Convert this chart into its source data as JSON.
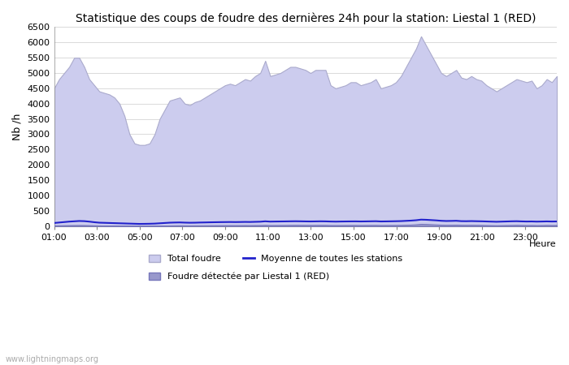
{
  "title": "Statistique des coups de foudre des dernières 24h pour la station: Liestal 1 (RED)",
  "ylabel": "Nb /h",
  "xlabel_right": "Heure",
  "watermark": "www.lightningmaps.org",
  "ylim": [
    0,
    6500
  ],
  "yticks": [
    0,
    500,
    1000,
    1500,
    2000,
    2500,
    3000,
    3500,
    4000,
    4500,
    5000,
    5500,
    6000,
    6500
  ],
  "xtick_labels": [
    "01:00",
    "03:00",
    "05:00",
    "07:00",
    "09:00",
    "11:00",
    "13:00",
    "15:00",
    "17:00",
    "19:00",
    "21:00",
    "23:00"
  ],
  "xtick_pos": [
    1,
    3,
    5,
    7,
    9,
    11,
    13,
    15,
    17,
    19,
    21,
    23
  ],
  "bg_color": "#ffffff",
  "grid_color": "#cccccc",
  "fill_color_total": "#ccccee",
  "fill_edge_total": "#aaaacc",
  "fill_color_liestal": "#9999cc",
  "fill_edge_liestal": "#7777bb",
  "line_color_mean": "#2222cc",
  "legend_labels": [
    "Total foudre",
    "Moyenne de toutes les stations",
    "Foudre détectée par Liestal 1 (RED)"
  ],
  "total_foudre": [
    4500,
    4800,
    5000,
    5200,
    5500,
    5500,
    5200,
    4800,
    4600,
    4400,
    4350,
    4300,
    4200,
    4000,
    3600,
    3000,
    2700,
    2650,
    2650,
    2700,
    3000,
    3500,
    3800,
    4100,
    4150,
    4200,
    4000,
    3950,
    4050,
    4100,
    4200,
    4300,
    4400,
    4500,
    4600,
    4650,
    4600,
    4700,
    4800,
    4750,
    4900,
    5000,
    5400,
    4900,
    4950,
    5000,
    5100,
    5200,
    5200,
    5150,
    5100,
    5000,
    5100,
    5100,
    5100,
    4600,
    4500,
    4550,
    4600,
    4700,
    4700,
    4600,
    4650,
    4700,
    4800,
    4500,
    4550,
    4600,
    4700,
    4900,
    5200,
    5500,
    5800,
    6200,
    5900,
    5600,
    5300,
    5000,
    4900,
    5000,
    5100,
    4850,
    4800,
    4900,
    4800,
    4750,
    4600,
    4500,
    4400,
    4500,
    4600,
    4700,
    4800,
    4750,
    4700,
    4750,
    4500,
    4600,
    4800,
    4700,
    4900
  ],
  "moyenne": [
    100,
    115,
    130,
    145,
    155,
    165,
    160,
    145,
    125,
    110,
    105,
    100,
    95,
    90,
    85,
    80,
    75,
    70,
    72,
    75,
    80,
    90,
    100,
    110,
    115,
    118,
    112,
    108,
    110,
    115,
    118,
    122,
    125,
    128,
    130,
    132,
    130,
    132,
    135,
    133,
    138,
    142,
    155,
    145,
    148,
    150,
    152,
    155,
    157,
    155,
    152,
    150,
    152,
    155,
    153,
    148,
    145,
    148,
    150,
    152,
    153,
    150,
    152,
    155,
    158,
    150,
    152,
    155,
    158,
    162,
    170,
    178,
    190,
    210,
    205,
    195,
    185,
    172,
    165,
    168,
    172,
    160,
    158,
    162,
    158,
    155,
    150,
    145,
    140,
    145,
    150,
    155,
    158,
    152,
    148,
    150,
    145,
    148,
    152,
    148,
    150
  ],
  "liestal": [
    20,
    22,
    25,
    28,
    30,
    32,
    30,
    26,
    22,
    18,
    16,
    15,
    13,
    12,
    10,
    8,
    7,
    6,
    6,
    7,
    9,
    12,
    15,
    18,
    20,
    22,
    20,
    19,
    20,
    21,
    22,
    24,
    25,
    26,
    27,
    28,
    27,
    28,
    29,
    28,
    30,
    31,
    35,
    30,
    31,
    32,
    33,
    35,
    36,
    35,
    34,
    33,
    34,
    35,
    34,
    30,
    29,
    30,
    31,
    32,
    32,
    31,
    32,
    33,
    34,
    30,
    31,
    32,
    33,
    35,
    40,
    45,
    55,
    70,
    65,
    58,
    50,
    42,
    38,
    40,
    43,
    38,
    36,
    38,
    36,
    34,
    30,
    27,
    24,
    27,
    30,
    33,
    36,
    33,
    30,
    32,
    28,
    30,
    34,
    31,
    33
  ],
  "title_fontsize": 10,
  "axis_fontsize": 8,
  "ylabel_fontsize": 9
}
